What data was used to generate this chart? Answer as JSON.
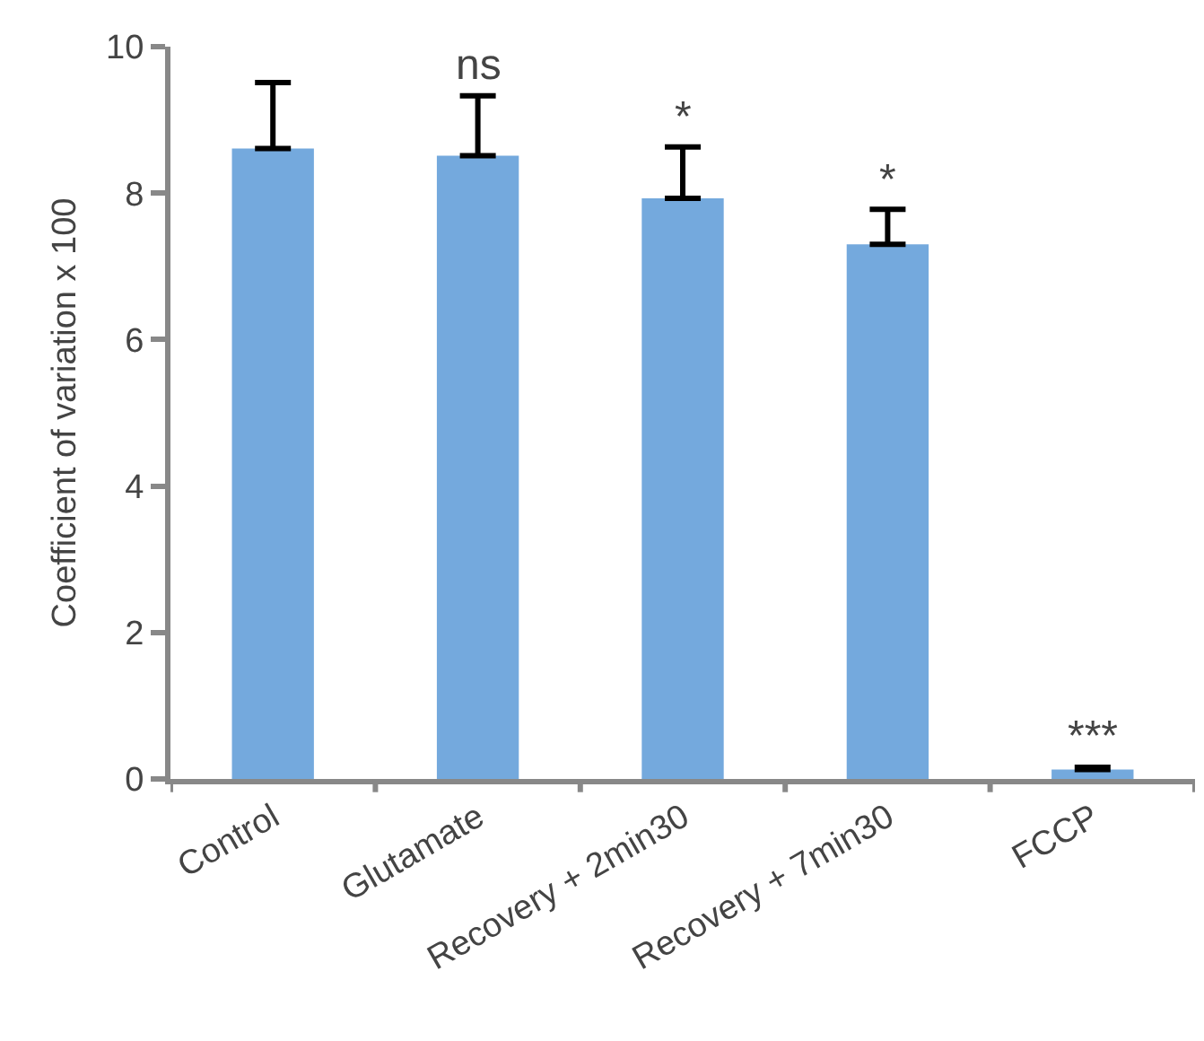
{
  "chart_data": {
    "type": "bar",
    "ylabel": "Coefficient of variation x 100",
    "categories": [
      "Control",
      "Glutamate",
      "Recovery + 2min30",
      "Recovery + 7min30",
      "FCCP"
    ],
    "values": [
      8.61,
      8.51,
      7.93,
      7.3,
      0.13
    ],
    "errors": [
      [
        8.61,
        9.51
      ],
      [
        8.51,
        9.33
      ],
      [
        7.93,
        8.63
      ],
      [
        7.3,
        7.78
      ],
      [
        0.13,
        0.16
      ]
    ],
    "color": "#74a9dd",
    "ylim": [
      0,
      10
    ],
    "yticks": [
      0,
      2,
      4,
      6,
      8,
      10
    ],
    "grid": false,
    "annotations": [
      "ns",
      "*",
      "*",
      "***"
    ]
  }
}
